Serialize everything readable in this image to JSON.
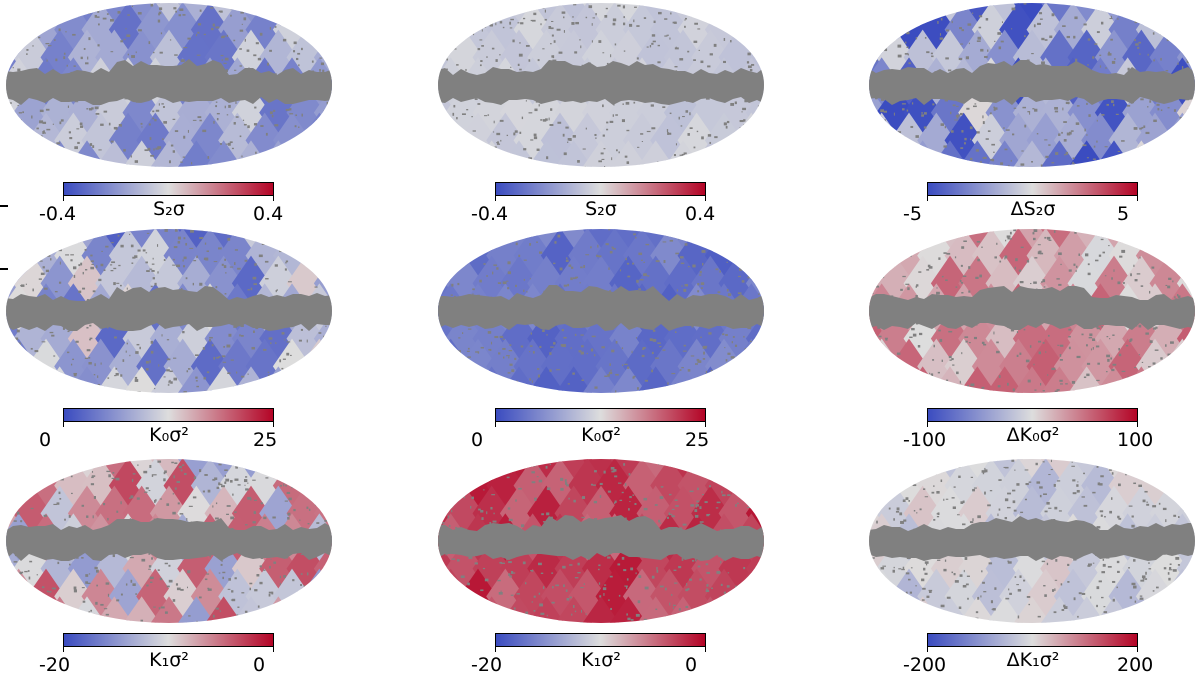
{
  "colormap": {
    "name": "coolwarm",
    "low": "#3b4cc0",
    "mid": "#dddddd",
    "high": "#b40426"
  },
  "mask_color": "#808080",
  "panels": [
    {
      "row": 0,
      "col": 0,
      "base": 0.3,
      "amp": 0.18,
      "seed": 3,
      "cbar": {
        "label": "S₂σ",
        "min": "-0.4",
        "max": "0.4"
      }
    },
    {
      "row": 0,
      "col": 1,
      "base": 0.44,
      "amp": 0.04,
      "seed": 7,
      "cbar": {
        "label": "S₂σ",
        "min": "-0.4",
        "max": "0.4"
      }
    },
    {
      "row": 0,
      "col": 2,
      "base": 0.25,
      "amp": 0.28,
      "seed": 11,
      "cbar": {
        "label": "ΔS₂σ",
        "min": "-5",
        "max": "5"
      }
    },
    {
      "row": 1,
      "col": 0,
      "base": 0.32,
      "amp": 0.25,
      "seed": 19,
      "cbar": {
        "label": "K₀σ²",
        "min": "0",
        "max": "25"
      }
    },
    {
      "row": 1,
      "col": 1,
      "base": 0.14,
      "amp": 0.08,
      "seed": 23,
      "cbar": {
        "label": "K₀σ²",
        "min": "0",
        "max": "25"
      }
    },
    {
      "row": 1,
      "col": 2,
      "base": 0.64,
      "amp": 0.16,
      "seed": 29,
      "cbar": {
        "label": "ΔK₀σ²",
        "min": "-100",
        "max": "100"
      }
    },
    {
      "row": 2,
      "col": 0,
      "base": 0.56,
      "amp": 0.3,
      "seed": 31,
      "cbar": {
        "label": "K₁σ²",
        "min": "-20",
        "max": "0"
      }
    },
    {
      "row": 2,
      "col": 1,
      "base": 0.86,
      "amp": 0.1,
      "seed": 37,
      "cbar": {
        "label": "K₁σ²",
        "min": "-20",
        "max": "0"
      }
    },
    {
      "row": 2,
      "col": 2,
      "base": 0.46,
      "amp": 0.1,
      "seed": 41,
      "cbar": {
        "label": "ΔK₁σ²",
        "min": "-200",
        "max": "200"
      }
    }
  ]
}
